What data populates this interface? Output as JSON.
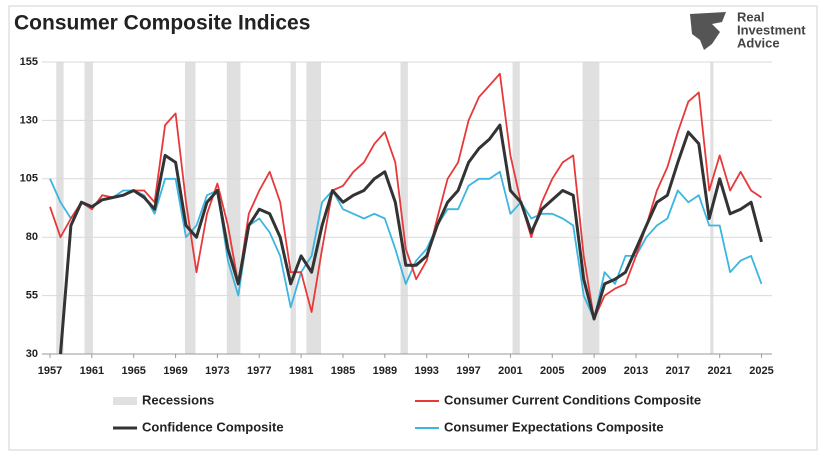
{
  "chart_data": {
    "type": "line",
    "title": "Consumer Composite Indices",
    "brand": [
      "Real",
      "Investment",
      "Advice"
    ],
    "xlim": [
      1957,
      2026
    ],
    "xticks": [
      1957,
      1961,
      1965,
      1969,
      1973,
      1977,
      1981,
      1985,
      1989,
      1993,
      1997,
      2001,
      2005,
      2009,
      2013,
      2017,
      2021,
      2025
    ],
    "ylim": [
      30,
      155
    ],
    "yticks": [
      30,
      55,
      80,
      105,
      130,
      155
    ],
    "grid": true,
    "recessions": {
      "name": "Recessions",
      "color": "#e0e0e0",
      "ranges": [
        [
          1957.6,
          1958.3
        ],
        [
          1960.3,
          1961.1
        ],
        [
          1969.9,
          1970.9
        ],
        [
          1973.9,
          1975.2
        ],
        [
          1980.0,
          1980.5
        ],
        [
          1981.5,
          1982.9
        ],
        [
          1990.5,
          1991.2
        ],
        [
          2001.2,
          2001.9
        ],
        [
          2007.9,
          2009.5
        ],
        [
          2020.1,
          2020.4
        ]
      ]
    },
    "x": [
      1957,
      1958,
      1959,
      1960,
      1961,
      1962,
      1963,
      1964,
      1965,
      1966,
      1967,
      1968,
      1969,
      1970,
      1971,
      1972,
      1973,
      1974,
      1975,
      1976,
      1977,
      1978,
      1979,
      1980,
      1981,
      1982,
      1983,
      1984,
      1985,
      1986,
      1987,
      1988,
      1989,
      1990,
      1991,
      1992,
      1993,
      1994,
      1995,
      1996,
      1997,
      1998,
      1999,
      2000,
      2001,
      2002,
      2003,
      2004,
      2005,
      2006,
      2007,
      2008,
      2009,
      2010,
      2011,
      2012,
      2013,
      2014,
      2015,
      2016,
      2017,
      2018,
      2019,
      2020,
      2021,
      2022,
      2023,
      2024,
      2025
    ],
    "series": [
      {
        "name": "Consumer Expectations Composite",
        "color": "#3bb6e0",
        "values": [
          105,
          95,
          88,
          95,
          92,
          98,
          97,
          100,
          100,
          98,
          90,
          105,
          105,
          80,
          85,
          98,
          100,
          70,
          55,
          85,
          88,
          82,
          72,
          50,
          65,
          72,
          95,
          100,
          92,
          90,
          88,
          90,
          88,
          75,
          60,
          70,
          75,
          85,
          92,
          92,
          102,
          105,
          105,
          108,
          90,
          95,
          88,
          90,
          90,
          88,
          85,
          55,
          45,
          65,
          60,
          72,
          72,
          80,
          85,
          88,
          100,
          95,
          98,
          85,
          85,
          65,
          70,
          72,
          60
        ]
      },
      {
        "name": "Consumer Current Conditions Composite",
        "color": "#e8393a",
        "values": [
          93,
          80,
          88,
          95,
          92,
          98,
          97,
          98,
          100,
          100,
          95,
          128,
          133,
          95,
          65,
          90,
          103,
          85,
          60,
          90,
          100,
          108,
          95,
          65,
          65,
          48,
          75,
          100,
          102,
          108,
          112,
          120,
          125,
          112,
          75,
          62,
          70,
          88,
          105,
          112,
          130,
          140,
          145,
          150,
          115,
          95,
          80,
          95,
          105,
          112,
          115,
          72,
          45,
          55,
          58,
          60,
          72,
          85,
          100,
          110,
          125,
          138,
          142,
          100,
          115,
          100,
          108,
          100,
          97
        ]
      },
      {
        "name": "Confidence Composite",
        "color": "#333333",
        "values": [
          null,
          30,
          85,
          95,
          93,
          96,
          97,
          98,
          100,
          97,
          92,
          115,
          112,
          85,
          80,
          95,
          100,
          75,
          60,
          85,
          92,
          90,
          80,
          60,
          72,
          65,
          85,
          100,
          95,
          98,
          100,
          105,
          108,
          95,
          68,
          68,
          72,
          85,
          95,
          100,
          112,
          118,
          122,
          128,
          100,
          95,
          82,
          92,
          96,
          100,
          98,
          62,
          45,
          60,
          62,
          65,
          75,
          85,
          95,
          98,
          112,
          125,
          120,
          88,
          105,
          90,
          92,
          95,
          78
        ]
      }
    ]
  }
}
